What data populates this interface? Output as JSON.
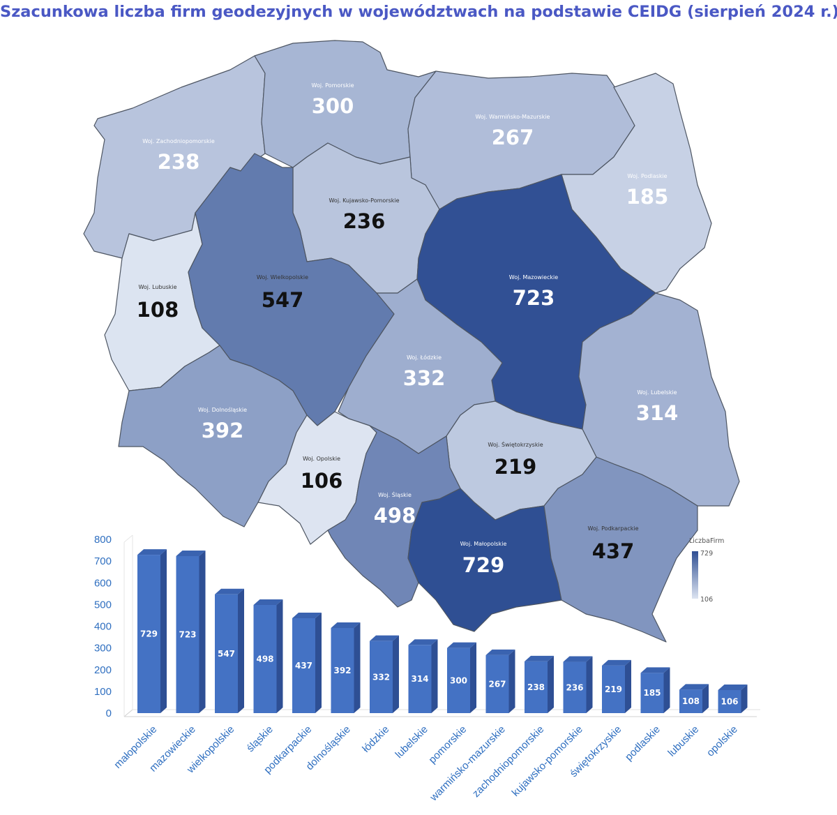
{
  "title": "Szacunkowa liczba firm geodezyjnych w województwach na podstawie CEIDG (sierpień 2024 r.)",
  "colors": {
    "low": "#dde4f1",
    "high": "#2f4f93",
    "bar_front": "#4472c4",
    "bar_side": "#2e4f94",
    "bar_top": "#3a63b0",
    "title": "#4a58c4",
    "axis_text": "#2f6fc0"
  },
  "map": {
    "legend": {
      "title": "LiczbaFirm",
      "max": "729",
      "min": "106"
    },
    "regions": [
      {
        "id": "zachodniopomorskie",
        "name": "Woj. Zachodniopomorskie",
        "value": 238
      },
      {
        "id": "pomorskie",
        "name": "Woj. Pomorskie",
        "value": 300
      },
      {
        "id": "warminsko-mazurskie",
        "name": "Woj. Warmińsko-Mazurskie",
        "value": 267
      },
      {
        "id": "podlaskie",
        "name": "Woj. Podlaskie",
        "value": 185
      },
      {
        "id": "kujawsko-pomorskie",
        "name": "Woj. Kujawsko-Pomorskie",
        "value": 236
      },
      {
        "id": "lubuskie",
        "name": "Woj. Lubuskie",
        "value": 108
      },
      {
        "id": "wielkopolskie",
        "name": "Woj. Wielkopolskie",
        "value": 547
      },
      {
        "id": "mazowieckie",
        "name": "Woj. Mazowieckie",
        "value": 723
      },
      {
        "id": "lodzkie",
        "name": "Woj. Łódzkie",
        "value": 332
      },
      {
        "id": "lubelskie",
        "name": "Woj. Lubelskie",
        "value": 314
      },
      {
        "id": "dolnoslaskie",
        "name": "Woj. Dolnośląskie",
        "value": 392
      },
      {
        "id": "opolskie",
        "name": "Woj. Opolskie",
        "value": 106
      },
      {
        "id": "swietokrzyskie",
        "name": "Woj. Świętokrzyskie",
        "value": 219
      },
      {
        "id": "slaskie",
        "name": "Woj. Śląskie",
        "value": 498
      },
      {
        "id": "malopolskie",
        "name": "Woj. Małopolskie",
        "value": 729
      },
      {
        "id": "podkarpackie",
        "name": "Woj. Podkarpackie",
        "value": 437
      }
    ]
  },
  "chart_data": {
    "type": "bar",
    "categories": [
      "małopolskie",
      "mazowieckie",
      "wielkopolskie",
      "śląskie",
      "podkarpackie",
      "dolnośląskie",
      "łódzkie",
      "lubelskie",
      "pomorskie",
      "warmińsko-mazurskie",
      "zachodniopomorskie",
      "kujawsko-pomorskie",
      "świętokrzyskie",
      "podlaskie",
      "lubuskie",
      "opolskie"
    ],
    "values": [
      729,
      723,
      547,
      498,
      437,
      392,
      332,
      314,
      300,
      267,
      238,
      236,
      219,
      185,
      108,
      106
    ],
    "ylim": [
      0,
      800
    ],
    "yticks": [
      0,
      100,
      200,
      300,
      400,
      500,
      600,
      700,
      800
    ],
    "data_labels": true,
    "grid": false
  }
}
